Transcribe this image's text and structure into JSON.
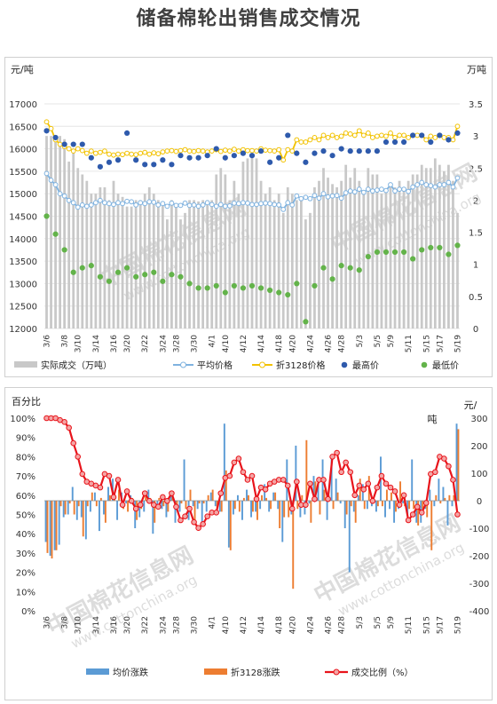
{
  "title": "储备棉轮出销售成交情况",
  "colors": {
    "volume": "#c8c8c8",
    "avg": "#7fb2df",
    "zhe": "#f2c200",
    "high": "#2e5aac",
    "low": "#63b34a",
    "chg_avg": "#5b9bd5",
    "chg_zhe": "#ed7d31",
    "ratio": "#e8141b",
    "watermark": "#d9d9d9"
  },
  "watermark": [
    "中国棉花信息网",
    "www.cottonchina.org"
  ],
  "top_chart": {
    "left_unit": "元/吨",
    "right_unit": "万吨",
    "left_ticks": [
      12000,
      12500,
      13000,
      13500,
      14000,
      14500,
      15000,
      15500,
      16000,
      16500,
      17000
    ],
    "right_ticks": [
      "0",
      "0.5",
      "1",
      "1.5",
      "2",
      "2.5",
      "3",
      "3.5"
    ],
    "legend": [
      "实际成交（万吨）",
      "平均价格",
      "折3128价格",
      "最高价",
      "最低价"
    ]
  },
  "bottom_chart": {
    "left_unit": "百分比",
    "right_unit_a": "元/",
    "right_unit_b": "吨",
    "left_ticks": [
      "0%",
      "10%",
      "20%",
      "30%",
      "40%",
      "50%",
      "60%",
      "70%",
      "80%",
      "90%",
      "100%"
    ],
    "right_ticks": [
      "-400",
      "-300",
      "-200",
      "-100",
      "0",
      "100",
      "200",
      "300"
    ],
    "legend": [
      "均价涨跌",
      "折3128涨跌",
      "成交比例（%）"
    ]
  },
  "chart_data": [
    {
      "type": "bar+line+scatter",
      "title": "储备棉轮出销售成交情况",
      "y_left": {
        "label": "元/吨",
        "range": [
          12000,
          17000
        ]
      },
      "y_right": {
        "label": "万吨",
        "range": [
          0,
          3.5
        ]
      },
      "x_tick_labels": [
        "3/6",
        "3/8",
        "3/10",
        "3/14",
        "3/16",
        "3/20",
        "3/22",
        "3/24",
        "3/28",
        "3/30",
        "4/1",
        "4/10",
        "4/12",
        "4/14",
        "4/18",
        "4/20",
        "4/24",
        "4/26",
        "4/28",
        "5/3",
        "5/5",
        "5/9",
        "5/11",
        "5/15",
        "5/17",
        "5/19"
      ],
      "series": [
        {
          "name": "实际成交（万吨）",
          "type": "bar",
          "axis": "right",
          "values": [
            3.0,
            3.0,
            2.98,
            3.0,
            2.95,
            2.6,
            2.8,
            2.5,
            2.4,
            2.3,
            2.1,
            2.1,
            2.2,
            2.2,
            2.0,
            2.3,
            2.1,
            2.05,
            1.9,
            1.9,
            2.0,
            2.0,
            2.1,
            2.2,
            2.1,
            2.0,
            1.95,
            1.7,
            2.0,
            1.9,
            1.7,
            1.8,
            2.0,
            2.0,
            1.98,
            2.0,
            2.0,
            2.0,
            2.4,
            2.5,
            2.4,
            2.0,
            2.3,
            2.1,
            2.6,
            2.65,
            2.7,
            2.65,
            2.3,
            2.1,
            2.2,
            2.0,
            2.1,
            1.8,
            2.2,
            2.1,
            2.0,
            2.0,
            1.7,
            1.8,
            2.2,
            2.3,
            2.5,
            2.35,
            2.25,
            2.2,
            2.3,
            2.55,
            2.35,
            2.5,
            2.3,
            2.1,
            2.5,
            2.4,
            2.4,
            2.1,
            2.15,
            2.2,
            2.2,
            2.3,
            2.2,
            2.3,
            2.4,
            2.4,
            2.55,
            2.5,
            2.5,
            2.65,
            2.55,
            2.45,
            2.55,
            2.3,
            1.8
          ]
        },
        {
          "name": "平均价格",
          "type": "line",
          "axis": "left",
          "values": [
            15450,
            15300,
            15200,
            15000,
            14950,
            14850,
            14800,
            14700,
            14750,
            14720,
            14750,
            14800,
            14850,
            14800,
            14780,
            14760,
            14800,
            14780,
            14830,
            14820,
            14750,
            14800,
            14780,
            14820,
            14810,
            14750,
            14780,
            14720,
            14790,
            14740,
            14740,
            14790,
            14740,
            14750,
            14720,
            14750,
            14800,
            14760,
            14720,
            14760,
            14720,
            14730,
            14790,
            14780,
            14800,
            14790,
            14760,
            14760,
            14780,
            14790,
            14780,
            14760,
            14750,
            14650,
            14800,
            14750,
            14950,
            14890,
            14920,
            14890,
            14960,
            14900,
            15000,
            14930,
            14950,
            14960,
            14900,
            15020,
            15060,
            15040,
            15100,
            15030,
            15100,
            15060,
            15080,
            15100,
            15070,
            15200,
            15060,
            15100,
            15100,
            15050,
            15150,
            15200,
            15250,
            15200,
            15180,
            15150,
            15200,
            15200,
            15250,
            15150,
            15350
          ]
        },
        {
          "name": "折3128价格",
          "type": "line",
          "axis": "left",
          "values": [
            16600,
            16450,
            16200,
            16100,
            16050,
            16000,
            15950,
            16000,
            15960,
            15900,
            15950,
            15900,
            15920,
            15950,
            15880,
            15860,
            15880,
            15870,
            15900,
            15880,
            15870,
            15900,
            15920,
            15880,
            15910,
            15890,
            15930,
            15950,
            15960,
            15940,
            15960,
            15980,
            15950,
            15940,
            15960,
            15950,
            15930,
            15950,
            15980,
            15940,
            15970,
            15950,
            15990,
            15950,
            15980,
            15960,
            15960,
            15950,
            16000,
            15970,
            15960,
            15950,
            15980,
            15750,
            15980,
            15950,
            16200,
            16150,
            16150,
            16200,
            16250,
            16200,
            16300,
            16250,
            16300,
            16250,
            16280,
            16350,
            16330,
            16300,
            16400,
            16300,
            16350,
            16250,
            16280,
            16300,
            16280,
            16350,
            16250,
            16300,
            16300,
            16250,
            16300,
            16300,
            16300,
            16200,
            16280,
            16250,
            16300,
            16250,
            16250,
            16200,
            16500
          ]
        },
        {
          "name": "最高价",
          "type": "scatter",
          "axis": "left",
          "values": [
            16400,
            16450,
            16250,
            16350,
            16100,
            16050,
            16100,
            16050,
            16100,
            15950,
            15800,
            16150,
            15600,
            15500,
            15700,
            16200,
            15750,
            16250,
            16350,
            16150,
            15750,
            16200,
            15650,
            15700,
            15650,
            15750,
            15750,
            15650,
            15650,
            15750,
            15850,
            15800,
            15800,
            15700,
            15800,
            15750,
            15850,
            15800,
            16000,
            15850,
            15800,
            16050,
            15850,
            15900,
            15900,
            15950,
            15850,
            15900,
            15950,
            15700,
            15700,
            15850,
            15800,
            15800,
            16300,
            15800,
            15900,
            15950,
            15700,
            15950,
            15900,
            15700,
            15950,
            15800,
            15850,
            16100,
            16000,
            15850,
            15950,
            15750,
            15950,
            16150,
            15950,
            16050,
            15950,
            16250,
            16150,
            16300,
            16150,
            16000,
            16150,
            16250,
            16300,
            16150,
            16300,
            16250,
            16150,
            16350,
            16300,
            16250,
            16200,
            16200,
            16350
          ]
        },
        {
          "name": "最低价",
          "type": "scatter",
          "axis": "left",
          "values": [
            14500,
            14300,
            14100,
            13800,
            13750,
            13900,
            13250,
            13150,
            13350,
            13500,
            13400,
            13350,
            13150,
            13450,
            13050,
            13000,
            13250,
            13450,
            13350,
            12950,
            13150,
            13300,
            13200,
            13200,
            13250,
            13150,
            13050,
            13100,
            13200,
            13100,
            13150,
            13250,
            13000,
            13000,
            12900,
            12950,
            12900,
            12850,
            12950,
            12950,
            12800,
            12850,
            12950,
            12900,
            12900,
            12950,
            12950,
            12900,
            12900,
            12950,
            12850,
            12850,
            12800,
            12800,
            12750,
            12700,
            13000,
            12800,
            12150,
            12950,
            12950,
            12900,
            13350,
            13300,
            13100,
            13500,
            13400,
            13450,
            13350,
            13300,
            13300,
            13650,
            13600,
            13650,
            13700,
            13600,
            13700,
            13900,
            13700,
            13650,
            13700,
            13800,
            13550,
            13700,
            13750,
            13650,
            13800,
            13950,
            13800,
            13650,
            13650,
            13850,
            13850
          ]
        }
      ]
    },
    {
      "type": "bar+line",
      "y_left": {
        "label": "百分比",
        "range": [
          0,
          100
        ]
      },
      "y_right": {
        "label": "元/吨",
        "range": [
          -400,
          300
        ]
      },
      "x_tick_labels": [
        "3/6",
        "3/8",
        "3/10",
        "3/14",
        "3/16",
        "3/20",
        "3/22",
        "3/24",
        "3/28",
        "3/30",
        "4/1",
        "4/10",
        "4/12",
        "4/14",
        "4/18",
        "4/20",
        "4/24",
        "4/26",
        "4/28",
        "5/3",
        "5/5",
        "5/9",
        "5/11",
        "5/15",
        "5/17",
        "5/19"
      ],
      "series": [
        {
          "name": "均价涨跌",
          "type": "bar",
          "axis": "right",
          "values": [
            -150,
            -200,
            -180,
            -160,
            -60,
            -50,
            50,
            -70,
            -60,
            -140,
            -40,
            30,
            -110,
            -50,
            50,
            80,
            -70,
            30,
            -10,
            20,
            -100,
            -60,
            -40,
            40,
            -120,
            -20,
            -30,
            -60,
            20,
            -80,
            -40,
            150,
            -70,
            -20,
            -30,
            -80,
            -40,
            30,
            -20,
            -40,
            280,
            -170,
            -50,
            20,
            -70,
            40,
            -60,
            -40,
            -30,
            60,
            -40,
            30,
            -30,
            -150,
            150,
            -50,
            200,
            -60,
            -50,
            -10,
            90,
            60,
            150,
            -70,
            160,
            80,
            -10,
            -100,
            -260,
            -40,
            20,
            60,
            -30,
            -20,
            -40,
            160,
            -60,
            -30,
            -80,
            -30,
            -10,
            -50,
            150,
            -80,
            -80,
            -30,
            40,
            -20,
            80,
            50,
            -90,
            -20,
            280
          ]
        },
        {
          "name": "折3128涨跌",
          "type": "bar",
          "axis": "right",
          "values": [
            -190,
            -210,
            -180,
            -20,
            -50,
            -10,
            -50,
            -20,
            -130,
            -20,
            30,
            -20,
            10,
            -80,
            20,
            30,
            40,
            -30,
            -40,
            10,
            -70,
            -30,
            20,
            10,
            -80,
            10,
            -20,
            -40,
            30,
            -20,
            -10,
            -30,
            40,
            -70,
            -10,
            -10,
            20,
            40,
            -30,
            -40,
            110,
            -180,
            -30,
            -40,
            10,
            20,
            -40,
            -70,
            20,
            10,
            -30,
            30,
            -100,
            -60,
            -60,
            -320,
            -30,
            20,
            220,
            -80,
            70,
            -50,
            40,
            20,
            -30,
            30,
            0,
            -50,
            -20,
            -80,
            80,
            -30,
            90,
            -10,
            -20,
            -20,
            40,
            30,
            -40,
            70,
            -20,
            -30,
            -30,
            -90,
            -30,
            -60,
            -180,
            20,
            -10,
            10,
            20,
            20,
            260
          ]
        },
        {
          "name": "成交比例（%）",
          "type": "line",
          "axis": "left",
          "values": [
            100,
            100,
            100,
            99,
            98,
            95,
            87,
            80,
            71,
            67,
            66,
            65,
            64,
            71,
            70,
            59,
            68,
            55,
            62,
            57,
            53,
            55,
            61,
            57,
            55,
            54,
            59,
            57,
            61,
            54,
            47,
            49,
            53,
            46,
            43,
            45,
            49,
            51,
            51,
            61,
            69,
            70,
            77,
            79,
            72,
            68,
            70,
            58,
            64,
            63,
            66,
            67,
            68,
            68,
            65,
            53,
            67,
            55,
            55,
            66,
            58,
            68,
            68,
            58,
            80,
            82,
            72,
            77,
            72,
            60,
            65,
            63,
            66,
            57,
            64,
            70,
            66,
            64,
            62,
            55,
            60,
            47,
            50,
            54,
            51,
            56,
            71,
            72,
            80,
            79,
            75,
            68,
            50
          ]
        }
      ]
    }
  ]
}
